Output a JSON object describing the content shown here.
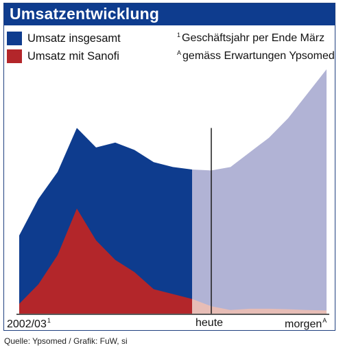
{
  "chart_data": {
    "type": "area",
    "title": "Umsatzentwicklung",
    "legend": [
      {
        "name": "Umsatz insgesamt",
        "color": "#0e3c8e"
      },
      {
        "name": "Umsatz mit Sanofi",
        "color": "#b3262a"
      }
    ],
    "notes": [
      {
        "mark": "1",
        "text": "Geschäftsjahr per Ende März"
      },
      {
        "mark": "A",
        "text": "gemäss Erwartungen Ypsomed"
      }
    ],
    "x_labels": [
      {
        "text": "2002/03",
        "sup": "1"
      },
      {
        "text": "heute",
        "sup": ""
      },
      {
        "text": "morgen",
        "sup": "A"
      }
    ],
    "colors": {
      "total_actual": "#0e3c8e",
      "total_forecast": "#b1b3d5",
      "sanofi_actual": "#b3262a",
      "sanofi_forecast": "#e7bdb6",
      "today_line": "#1a1a1a",
      "axis": "#222222"
    },
    "today_index": 10,
    "series": [
      {
        "name": "Umsatz insgesamt",
        "values": [
          32,
          47,
          58,
          76,
          68,
          70,
          67,
          62,
          60,
          59,
          58.6,
          60,
          66,
          72,
          80,
          90,
          100
        ]
      },
      {
        "name": "Umsatz mit Sanofi",
        "values": [
          4,
          12,
          24,
          43,
          30,
          22,
          17,
          10,
          8,
          6,
          3,
          1.5,
          2,
          2,
          1.8,
          1.5,
          1.3
        ]
      }
    ],
    "ylim": [
      0,
      100
    ]
  },
  "source": "Quelle: Ypsomed / Grafik: FuW, si"
}
